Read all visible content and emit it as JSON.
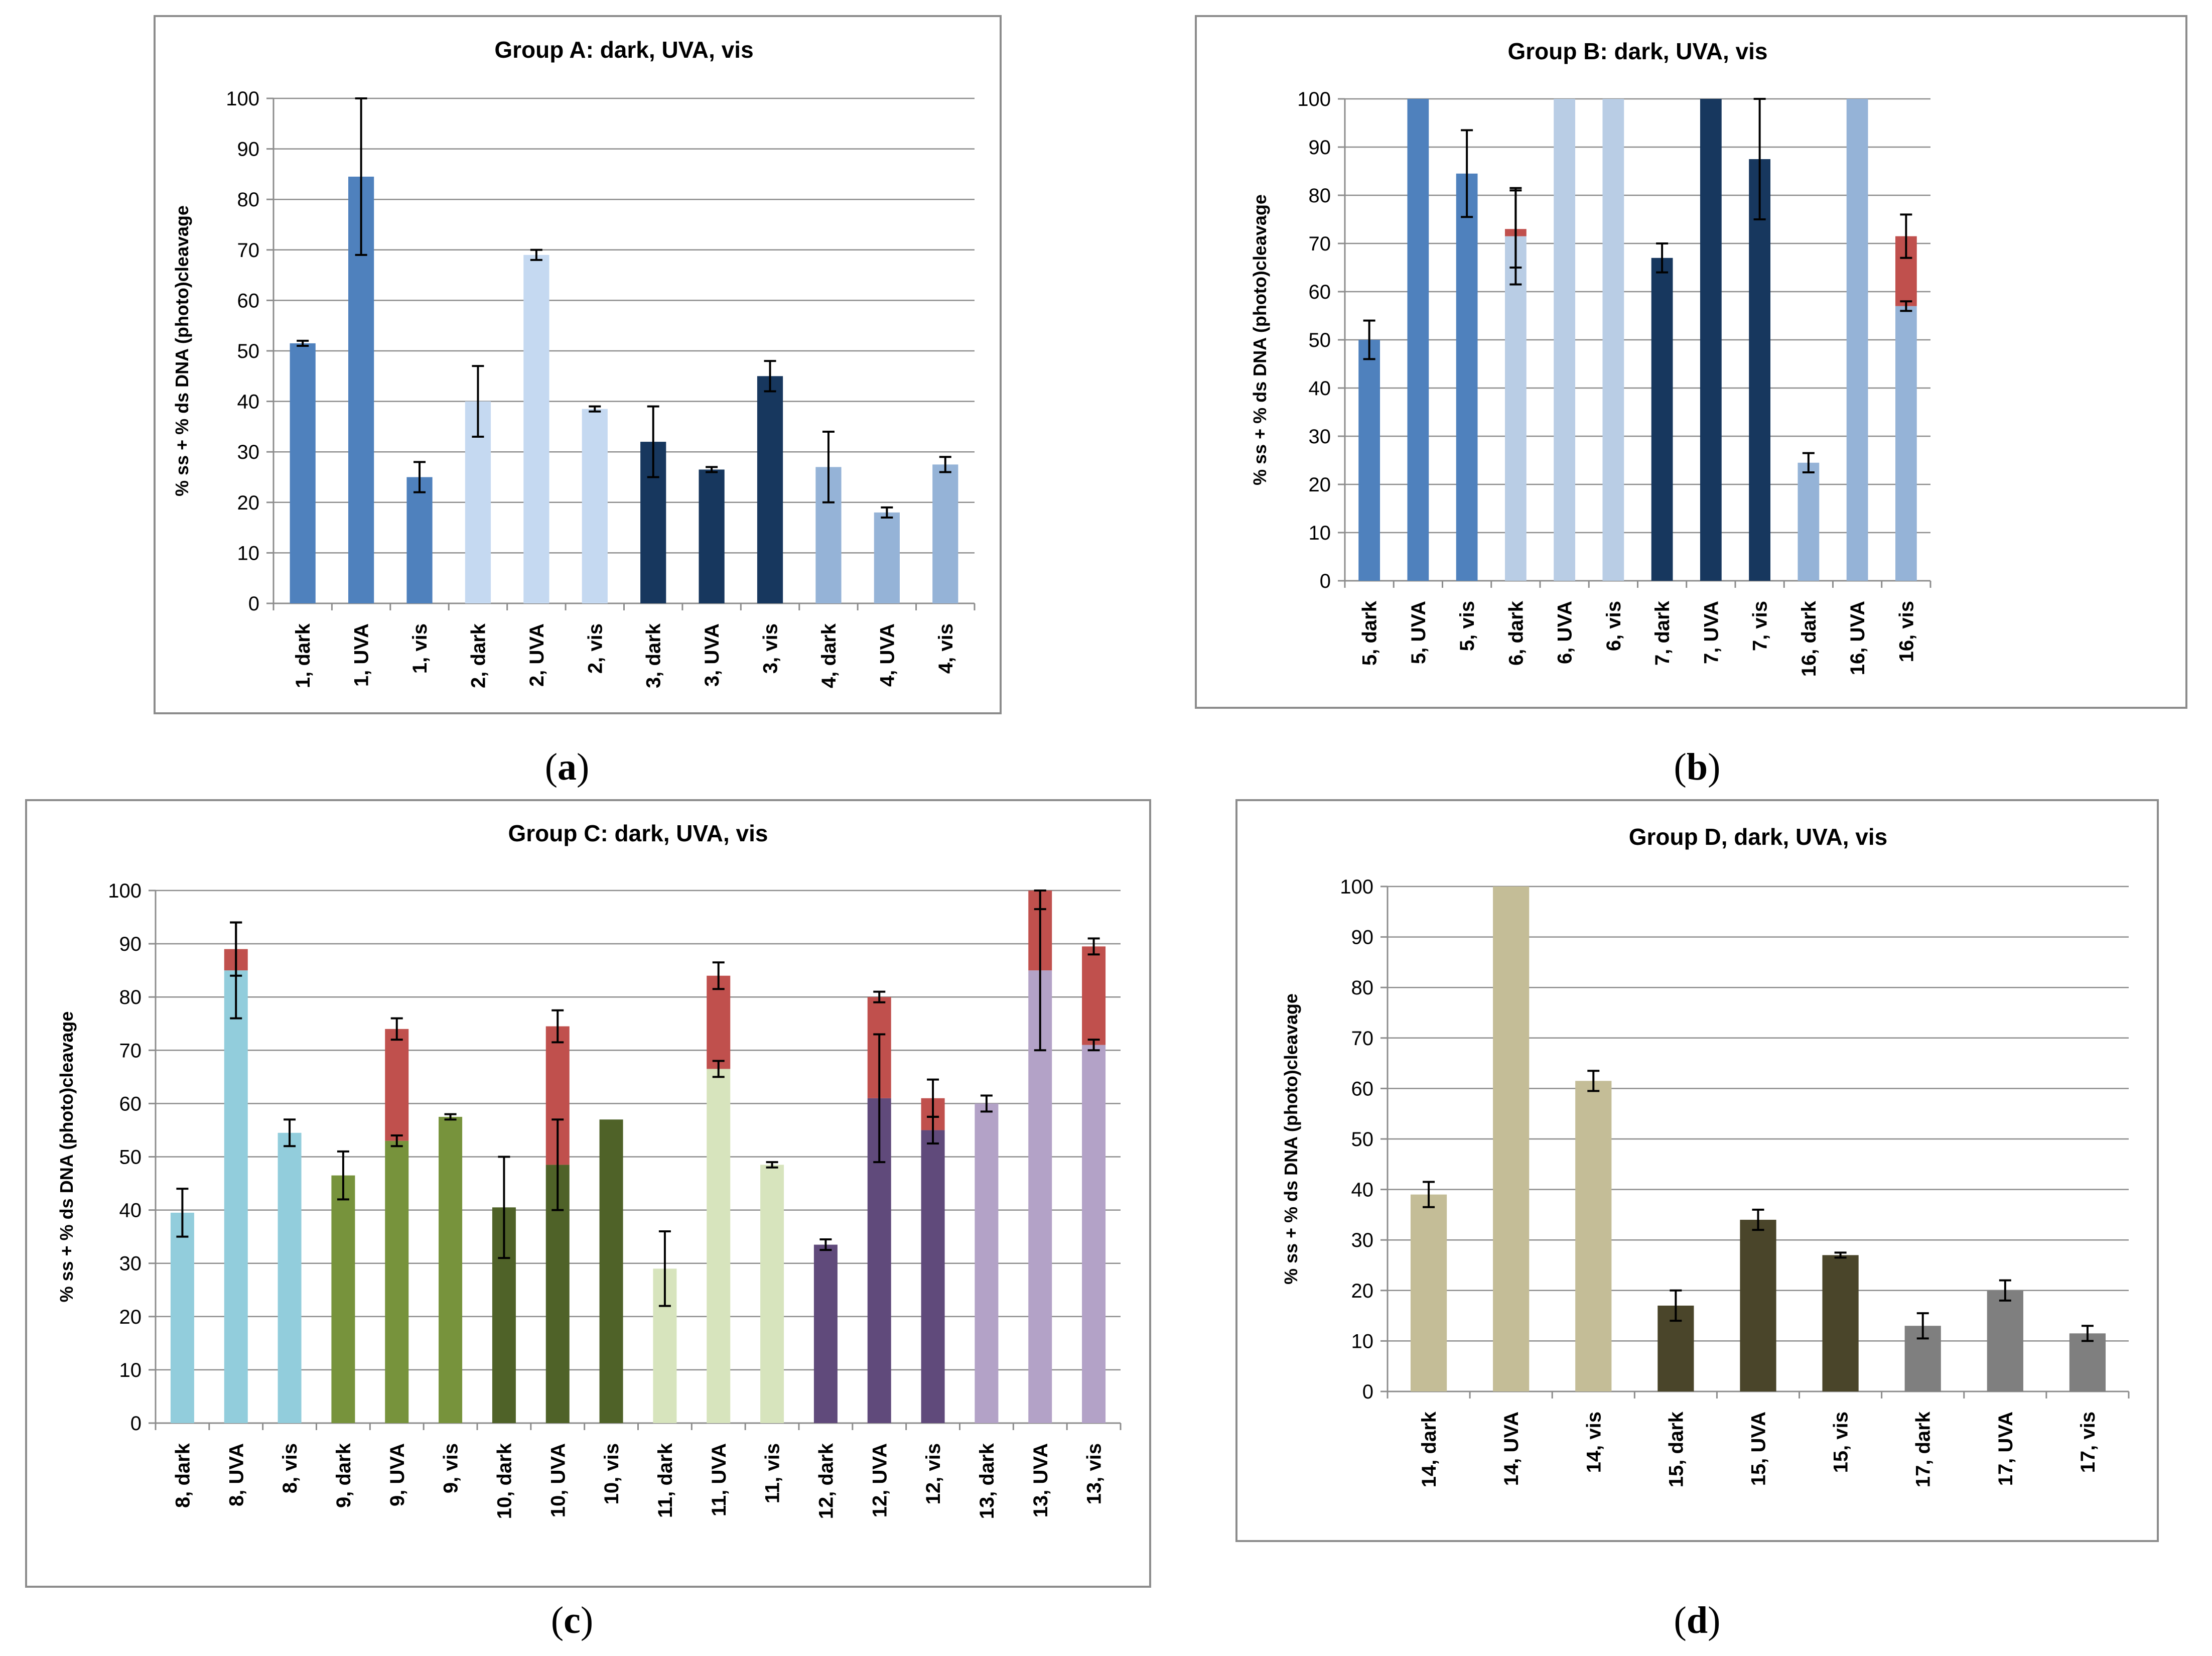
{
  "panels": [
    {
      "id": "a",
      "label_text": "a",
      "chart_data": {
        "type": "bar",
        "stacked": true,
        "title": "Group A: dark, UVA, vis",
        "ylabel": "% ss + % ds DNA (photo)cleavage",
        "xlabel": "",
        "ylim": [
          0,
          100
        ],
        "yticks": [
          0,
          10,
          20,
          30,
          40,
          50,
          60,
          70,
          80,
          90,
          100
        ],
        "grid": true,
        "categories": [
          "1, dark",
          "1, UVA",
          "1, vis",
          "2, dark",
          "2, UVA",
          "2, vis",
          "3, dark",
          "3, UVA",
          "3, vis",
          "4, dark",
          "4, UVA",
          "4, vis"
        ],
        "colors": [
          "#4f81bd",
          "#4f81bd",
          "#4f81bd",
          "#c5d9f1",
          "#c5d9f1",
          "#c5d9f1",
          "#17375e",
          "#17375e",
          "#17375e",
          "#95b3d7",
          "#95b3d7",
          "#95b3d7"
        ],
        "series": [
          {
            "name": "% ss",
            "values": [
              51.5,
              84.5,
              25,
              40,
              69,
              38.5,
              32,
              26.5,
              45,
              27,
              18,
              27.5
            ],
            "errors": [
              0.5,
              15.5,
              3,
              7,
              1,
              0.5,
              7,
              0.5,
              3,
              7,
              1,
              1.5
            ]
          },
          {
            "name": "% ds",
            "color": "#c0504d",
            "values": [
              0,
              0,
              0,
              0,
              0,
              0,
              0,
              0,
              0,
              0,
              0,
              0
            ],
            "errors": [
              0,
              0,
              0,
              0,
              0,
              0,
              0,
              0,
              0,
              0,
              0,
              0
            ]
          }
        ]
      }
    },
    {
      "id": "b",
      "label_text": "b",
      "chart_data": {
        "type": "bar",
        "stacked": true,
        "title": "Group B: dark, UVA, vis",
        "ylabel": "% ss + % ds DNA (photo)cleavage",
        "xlabel": "",
        "ylim": [
          0,
          100
        ],
        "yticks": [
          0,
          10,
          20,
          30,
          40,
          50,
          60,
          70,
          80,
          90,
          100
        ],
        "grid": true,
        "categories": [
          "5, dark",
          "5, UVA",
          "5, vis",
          "6, dark",
          "6, UVA",
          "6, vis",
          "7, dark",
          "7, UVA",
          "7, vis",
          "16, dark",
          "16, UVA",
          "16, vis"
        ],
        "colors": [
          "#4f81bd",
          "#4f81bd",
          "#4f81bd",
          "#b9cde5",
          "#b9cde5",
          "#b9cde5",
          "#17375e",
          "#17375e",
          "#17375e",
          "#95b3d7",
          "#95b3d7",
          "#95b3d7"
        ],
        "series": [
          {
            "name": "% ss",
            "values": [
              50,
              100,
              84.5,
              71.5,
              100,
              100,
              67,
              100,
              87.5,
              24.5,
              100,
              57
            ],
            "errors": [
              4,
              0,
              9,
              10,
              0,
              0,
              3,
              0,
              12.5,
              2,
              0,
              1
            ]
          },
          {
            "name": "% ds",
            "color": "#c0504d",
            "values": [
              0,
              0,
              0,
              1.5,
              0,
              0,
              0,
              0,
              0,
              0,
              0,
              14.5
            ],
            "errors": [
              0,
              0,
              0,
              8,
              0,
              0,
              0,
              0,
              0,
              0,
              0,
              4.5
            ]
          }
        ]
      }
    },
    {
      "id": "c",
      "label_text": "c",
      "chart_data": {
        "type": "bar",
        "stacked": true,
        "title": "Group C: dark, UVA, vis",
        "ylabel": "% ss + % ds DNA (photo)cleavage",
        "xlabel": "",
        "ylim": [
          0,
          100
        ],
        "yticks": [
          0,
          10,
          20,
          30,
          40,
          50,
          60,
          70,
          80,
          90,
          100
        ],
        "grid": true,
        "categories": [
          "8, dark",
          "8, UVA",
          "8, vis",
          "9, dark",
          "9, UVA",
          "9, vis",
          "10, dark",
          "10, UVA",
          "10, vis",
          "11, dark",
          "11, UVA",
          "11, vis",
          "12, dark",
          "12, UVA",
          "12, vis",
          "13, dark",
          "13, UVA",
          "13, vis"
        ],
        "colors": [
          "#92cddc",
          "#92cddc",
          "#92cddc",
          "#77933c",
          "#77933c",
          "#77933c",
          "#4f6228",
          "#4f6228",
          "#4f6228",
          "#d7e4bd",
          "#d7e4bd",
          "#d7e4bd",
          "#604a7b",
          "#604a7b",
          "#604a7b",
          "#b3a2c7",
          "#b3a2c7",
          "#b3a2c7"
        ],
        "series": [
          {
            "name": "% ss",
            "values": [
              39.5,
              85,
              54.5,
              46.5,
              53,
              57.5,
              40.5,
              48.5,
              57,
              29,
              66.5,
              48.5,
              33.5,
              61,
              55,
              60,
              85,
              71
            ],
            "errors": [
              4.5,
              9,
              2.5,
              4.5,
              1,
              0.5,
              9.5,
              8.5,
              0,
              7,
              1.5,
              0.5,
              1,
              12,
              2.5,
              1.5,
              15,
              1
            ]
          },
          {
            "name": "% ds",
            "color": "#c0504d",
            "values": [
              0,
              4,
              0,
              0,
              21,
              0,
              0,
              26,
              0,
              0,
              17.5,
              0,
              0,
              19,
              6,
              0,
              15,
              18.5
            ],
            "errors": [
              0,
              5,
              0,
              0,
              2,
              0,
              0,
              3,
              0,
              0,
              2.5,
              0,
              0,
              1,
              3.5,
              0,
              3.5,
              1.5
            ]
          }
        ]
      }
    },
    {
      "id": "d",
      "label_text": "d",
      "chart_data": {
        "type": "bar",
        "stacked": true,
        "title": "Group D, dark, UVA, vis",
        "ylabel": "% ss + % ds DNA (photo)cleavage",
        "xlabel": "",
        "ylim": [
          0,
          100
        ],
        "yticks": [
          0,
          10,
          20,
          30,
          40,
          50,
          60,
          70,
          80,
          90,
          100
        ],
        "grid": true,
        "categories": [
          "14, dark",
          "14, UVA",
          "14, vis",
          "15, dark",
          "15, UVA",
          "15, vis",
          "17, dark",
          "17, UVA",
          "17, vis"
        ],
        "colors": [
          "#c4bd97",
          "#c4bd97",
          "#c4bd97",
          "#4a452a",
          "#4a452a",
          "#4a452a",
          "#7f7f7f",
          "#7f7f7f",
          "#7f7f7f"
        ],
        "series": [
          {
            "name": "% ss",
            "values": [
              39,
              100,
              61.5,
              17,
              34,
              27,
              13,
              20,
              11.5
            ],
            "errors": [
              2.5,
              0,
              2,
              3,
              2,
              0.5,
              2.5,
              2,
              1.5
            ]
          },
          {
            "name": "% ds",
            "color": "#c0504d",
            "values": [
              0,
              0,
              0,
              0,
              0,
              0,
              0,
              0,
              0
            ],
            "errors": [
              0,
              0,
              0,
              0,
              0,
              0,
              0,
              0,
              0
            ]
          }
        ]
      }
    }
  ]
}
